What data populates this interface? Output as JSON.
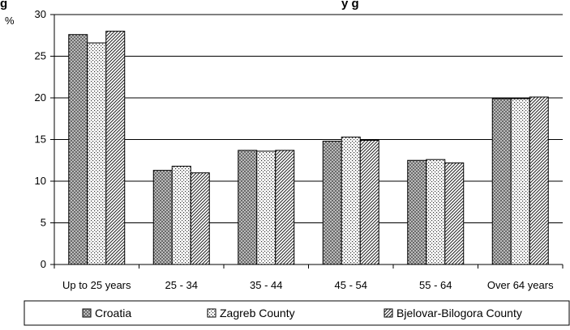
{
  "chart_data": {
    "type": "bar",
    "title": "g",
    "title_tail": "y g",
    "ylabel": "%",
    "xlabel": "",
    "ylim": [
      0,
      30
    ],
    "yticks": [
      0,
      5,
      10,
      15,
      20,
      25,
      30
    ],
    "grid": true,
    "legend_position": "bottom",
    "categories": [
      "Up to 25 years",
      "25 - 34",
      "35 - 44",
      "45 - 54",
      "55 - 64",
      "Over 64 years"
    ],
    "series": [
      {
        "name": "Croatia",
        "pattern": "dark-crosshatch",
        "values": [
          27.6,
          11.3,
          13.7,
          14.8,
          12.5,
          19.9
        ]
      },
      {
        "name": "Zagreb County",
        "pattern": "dots",
        "values": [
          26.6,
          11.8,
          13.6,
          15.3,
          12.6,
          19.9
        ]
      },
      {
        "name": "Bjelovar-Bilogora County",
        "pattern": "diagonal-stripes",
        "values": [
          28.0,
          11.0,
          13.7,
          14.9,
          12.2,
          20.1
        ]
      }
    ]
  }
}
